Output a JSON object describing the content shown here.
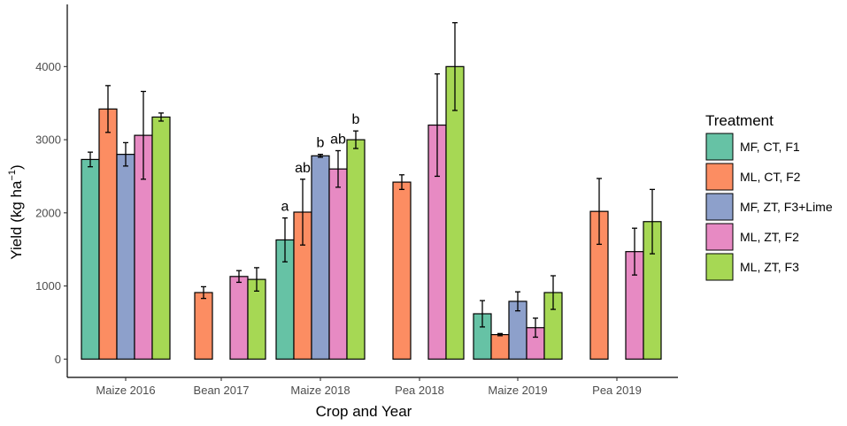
{
  "chart_data": {
    "type": "bar",
    "title": "",
    "xlabel": "Crop and Year",
    "ylabel": {
      "main": "Yield (kg ha",
      "sup": "−1",
      "close": ")"
    },
    "ylim": [
      -250,
      4850
    ],
    "yticks": [
      0,
      1000,
      2000,
      3000,
      4000
    ],
    "ytick_labels": [
      "0",
      "1000",
      "2000",
      "3000",
      "4000"
    ],
    "categories": [
      "Maize 2016",
      "Bean 2017",
      "Maize 2018",
      "Pea 2018",
      "Maize 2019",
      "Pea 2019"
    ],
    "legend": {
      "title": "Treatment",
      "position": "right"
    },
    "series": [
      {
        "name": "MF, CT, F1",
        "color": "#66C2A5",
        "values": [
          2730,
          null,
          1630,
          null,
          620,
          null
        ],
        "errors": [
          100,
          null,
          300,
          null,
          180,
          null
        ],
        "labels": [
          null,
          null,
          "a",
          null,
          null,
          null
        ]
      },
      {
        "name": "ML, CT, F2",
        "color": "#FC8D62",
        "values": [
          3420,
          910,
          2010,
          2420,
          335,
          2020
        ],
        "errors": [
          320,
          80,
          450,
          100,
          15,
          450
        ],
        "labels": [
          null,
          null,
          "ab",
          null,
          null,
          null
        ]
      },
      {
        "name": "MF, ZT, F3+Lime",
        "color": "#8DA0CB",
        "values": [
          2800,
          null,
          2780,
          null,
          790,
          null
        ],
        "errors": [
          160,
          null,
          20,
          null,
          130,
          null
        ],
        "labels": [
          null,
          null,
          "b",
          null,
          null,
          null
        ]
      },
      {
        "name": "ML, ZT, F2",
        "color": "#E78AC3",
        "values": [
          3060,
          1130,
          2600,
          3200,
          430,
          1470
        ],
        "errors": [
          600,
          80,
          250,
          700,
          130,
          320
        ],
        "labels": [
          null,
          null,
          "ab",
          null,
          null,
          null
        ]
      },
      {
        "name": "ML, ZT, F3",
        "color": "#A6D854",
        "values": [
          3310,
          1090,
          3000,
          4000,
          910,
          1880
        ],
        "errors": [
          55,
          160,
          120,
          600,
          230,
          440
        ],
        "labels": [
          null,
          null,
          "b",
          null,
          null,
          null
        ]
      }
    ]
  }
}
